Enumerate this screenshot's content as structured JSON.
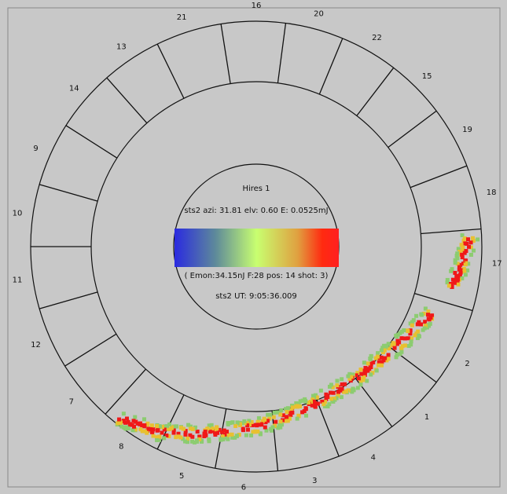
{
  "display": {
    "title": "Hires 1",
    "info": "sts2 azi: 31.81 elv: 0.60 E: 0.0525mJ",
    "monitor": "( Emon:34.15nJ F:28 pos: 14 shot:  3)",
    "time": "sts2 UT:  9:05:36.009",
    "sector_labels": [
      "16",
      "20",
      "22",
      "15",
      "19",
      "18",
      "17",
      "2",
      "1",
      "4",
      "3",
      "6",
      "5",
      "8",
      "7",
      "12",
      "11",
      "10",
      "9",
      "14",
      "13",
      "21"
    ]
  }
}
